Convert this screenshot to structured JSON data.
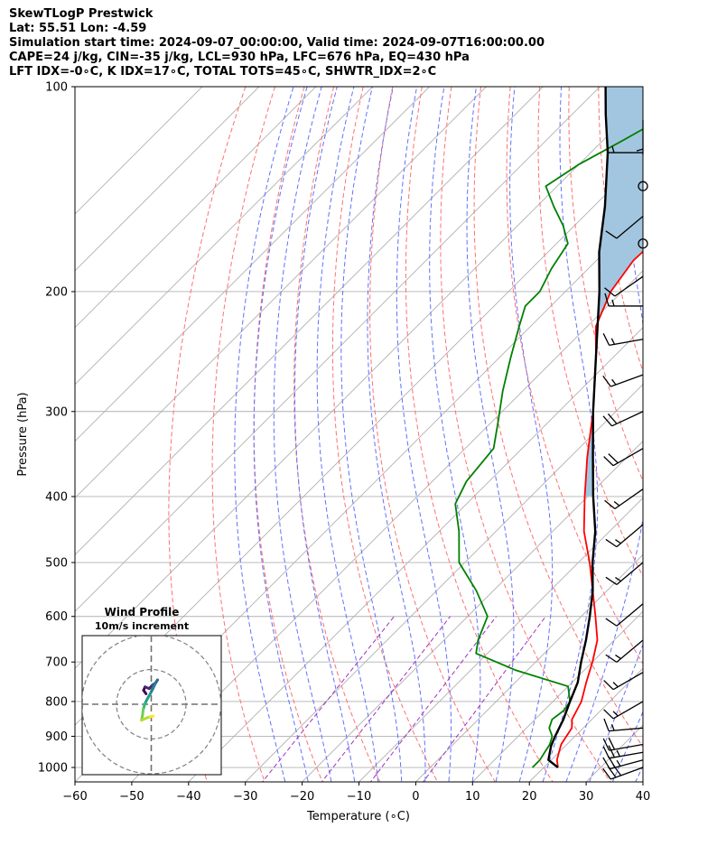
{
  "chart_data": {
    "type": "line",
    "title_lines": [
      "SkewTLogP Prestwick",
      "Lat: 55.51   Lon: -4.59",
      "Simulation start time: 2024-09-07_00:00:00, Valid time: 2024-09-07T16:00:00.00",
      "CAPE=24 j/kg, CIN=-35 j/kg, LCL=930 hPa, LFC=676 hPa, EQ=430 hPa",
      "LFT IDX=-0∘C, K IDX=17∘C, TOTAL TOTS=45∘C, SHWTR_IDX=2∘C"
    ],
    "xlabel": "Temperature (∘C)",
    "ylabel": "Pressure (hPa)",
    "xlim": [
      -60,
      40
    ],
    "ylim": [
      1050,
      100
    ],
    "yscale": "log",
    "x_ticks": [
      -60,
      -50,
      -40,
      -30,
      -20,
      -10,
      0,
      10,
      20,
      30,
      40
    ],
    "y_ticks": [
      100,
      200,
      300,
      400,
      500,
      600,
      700,
      800,
      900,
      1000
    ],
    "grid": true,
    "series": [
      {
        "id": "temperature",
        "color": "#ff0000",
        "points": [
          [
            1000,
            22.5
          ],
          [
            975,
            21
          ],
          [
            950,
            20
          ],
          [
            925,
            19
          ],
          [
            900,
            18.5
          ],
          [
            875,
            18
          ],
          [
            850,
            16.5
          ],
          [
            800,
            15
          ],
          [
            750,
            12.5
          ],
          [
            700,
            10
          ],
          [
            650,
            7
          ],
          [
            600,
            2.5
          ],
          [
            550,
            -2.5
          ],
          [
            500,
            -8
          ],
          [
            450,
            -14.5
          ],
          [
            400,
            -20.5
          ],
          [
            350,
            -27
          ],
          [
            300,
            -34
          ],
          [
            250,
            -43
          ],
          [
            225,
            -48.5
          ],
          [
            200,
            -52
          ],
          [
            180,
            -53.5
          ],
          [
            160,
            -53
          ],
          [
            140,
            -54
          ],
          [
            130,
            -53
          ],
          [
            120,
            -49.5
          ],
          [
            110,
            -46
          ],
          [
            105,
            -43.5
          ],
          [
            100,
            -40.5
          ]
        ]
      },
      {
        "id": "dewpoint",
        "color": "#008000",
        "points": [
          [
            1000,
            18
          ],
          [
            975,
            18
          ],
          [
            950,
            17.5
          ],
          [
            925,
            17
          ],
          [
            900,
            16
          ],
          [
            875,
            14
          ],
          [
            850,
            13
          ],
          [
            825,
            13.5
          ],
          [
            800,
            13
          ],
          [
            760,
            10
          ],
          [
            720,
            -2
          ],
          [
            680,
            -12
          ],
          [
            650,
            -14
          ],
          [
            600,
            -16.5
          ],
          [
            550,
            -23
          ],
          [
            500,
            -31
          ],
          [
            450,
            -36.5
          ],
          [
            410,
            -42
          ],
          [
            380,
            -44
          ],
          [
            340,
            -45
          ],
          [
            310,
            -49
          ],
          [
            280,
            -53.5
          ],
          [
            250,
            -58
          ],
          [
            225,
            -62
          ],
          [
            210,
            -64.5
          ],
          [
            200,
            -64.5
          ],
          [
            185,
            -66.5
          ],
          [
            170,
            -68
          ],
          [
            160,
            -72
          ],
          [
            150,
            -77
          ],
          [
            140,
            -82
          ],
          [
            130,
            -80
          ],
          [
            120,
            -76.5
          ],
          [
            110,
            -73
          ],
          [
            100,
            -69.5
          ]
        ]
      },
      {
        "id": "parcel",
        "color": "#000000",
        "points": [
          [
            1000,
            22.5
          ],
          [
            975,
            19.5
          ],
          [
            930,
            17.5
          ],
          [
            900,
            16.5
          ],
          [
            850,
            15
          ],
          [
            800,
            13
          ],
          [
            750,
            11
          ],
          [
            700,
            8
          ],
          [
            650,
            5
          ],
          [
            600,
            1.5
          ],
          [
            550,
            -2.5
          ],
          [
            500,
            -7.5
          ],
          [
            450,
            -12.5
          ],
          [
            400,
            -19
          ],
          [
            350,
            -26
          ],
          [
            300,
            -34
          ],
          [
            250,
            -43
          ],
          [
            200,
            -54
          ],
          [
            175,
            -61
          ],
          [
            150,
            -68
          ],
          [
            125,
            -77
          ],
          [
            110,
            -84
          ],
          [
            100,
            -89
          ]
        ]
      }
    ],
    "cape_fill_color": "#a3c6e0",
    "isotherm_color": "#b0b0b0",
    "dry_adiabat_color": "#ff7070",
    "moist_adiabat_color": "#6070ff",
    "mixing_ratio_color": "#a030c0",
    "wind_barbs": [
      {
        "p": 1000,
        "type": "barb",
        "angle": 250,
        "speed": 30
      },
      {
        "p": 975,
        "type": "barb",
        "angle": 255,
        "speed": 25
      },
      {
        "p": 950,
        "type": "barb",
        "angle": 260,
        "speed": 25
      },
      {
        "p": 925,
        "type": "barb",
        "angle": 260,
        "speed": 20
      },
      {
        "p": 875,
        "type": "barb",
        "angle": 265,
        "speed": 15
      },
      {
        "p": 800,
        "type": "barb",
        "angle": 240,
        "speed": 15
      },
      {
        "p": 725,
        "type": "barb",
        "angle": 240,
        "speed": 15
      },
      {
        "p": 650,
        "type": "barb",
        "angle": 230,
        "speed": 15
      },
      {
        "p": 575,
        "type": "barb",
        "angle": 230,
        "speed": 10
      },
      {
        "p": 500,
        "type": "barb",
        "angle": 230,
        "speed": 15
      },
      {
        "p": 440,
        "type": "barb",
        "angle": 230,
        "speed": 15
      },
      {
        "p": 390,
        "type": "barb",
        "angle": 235,
        "speed": 15
      },
      {
        "p": 340,
        "type": "barb",
        "angle": 240,
        "speed": 20
      },
      {
        "p": 300,
        "type": "barb",
        "angle": 245,
        "speed": 20
      },
      {
        "p": 265,
        "type": "barb",
        "angle": 250,
        "speed": 15
      },
      {
        "p": 235,
        "type": "barb",
        "angle": 260,
        "speed": 15
      },
      {
        "p": 210,
        "type": "barb",
        "angle": 270,
        "speed": 15
      },
      {
        "p": 190,
        "type": "barb",
        "angle": 235,
        "speed": 10
      },
      {
        "p": 170,
        "type": "calm"
      },
      {
        "p": 155,
        "type": "barb",
        "angle": 230,
        "speed": 10
      },
      {
        "p": 140,
        "type": "calm"
      },
      {
        "p": 125,
        "type": "barb",
        "angle": 270,
        "speed": 5
      },
      {
        "p": 112,
        "type": "barb",
        "angle": 180,
        "speed": 5
      }
    ],
    "hodograph": {
      "title": "Wind Profile",
      "subtitle": "10m/s increment",
      "rings": [
        10,
        20,
        30
      ],
      "range": 20,
      "points": [
        [
          -1.5,
          3
        ],
        [
          -2.2,
          4
        ],
        [
          -1.8,
          5
        ],
        [
          -0.6,
          4.5
        ],
        [
          0.3,
          5.5
        ],
        [
          1.3,
          6.2
        ],
        [
          1.8,
          7
        ],
        [
          1.2,
          6
        ],
        [
          0.5,
          4.5
        ],
        [
          -0.3,
          3
        ],
        [
          -1,
          1.8
        ],
        [
          -1.8,
          0.2
        ],
        [
          -2.3,
          -1.5
        ],
        [
          -2.5,
          -3
        ],
        [
          -2.8,
          -4.6
        ],
        [
          -1.5,
          -4
        ],
        [
          -0.3,
          -3.6
        ],
        [
          0.6,
          -3.4
        ]
      ],
      "colormap": "viridis"
    }
  }
}
